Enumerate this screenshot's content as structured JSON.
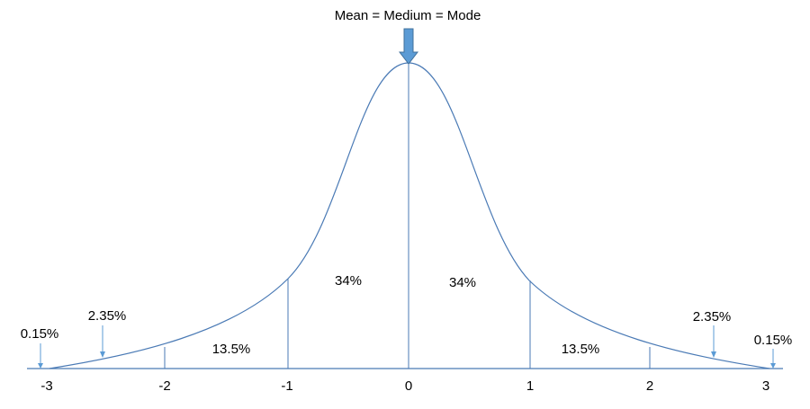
{
  "title": "Mean = Medium = Mode",
  "colors": {
    "curve": "#4a7ab5",
    "arrow_fill": "#5b9bd5",
    "arrow_stroke": "#41719c",
    "text": "#000000"
  },
  "axis": {
    "ticks": [
      "-3",
      "-2",
      "-1",
      "0",
      "1",
      "2",
      "3"
    ]
  },
  "regions": {
    "tail_left": "0.15%",
    "band_left_outer": "2.35%",
    "band_left_mid": "13.5%",
    "band_left_inner": "34%",
    "band_right_inner": "34%",
    "band_right_mid": "13.5%",
    "band_right_outer": "2.35%",
    "tail_right": "0.15%"
  }
}
